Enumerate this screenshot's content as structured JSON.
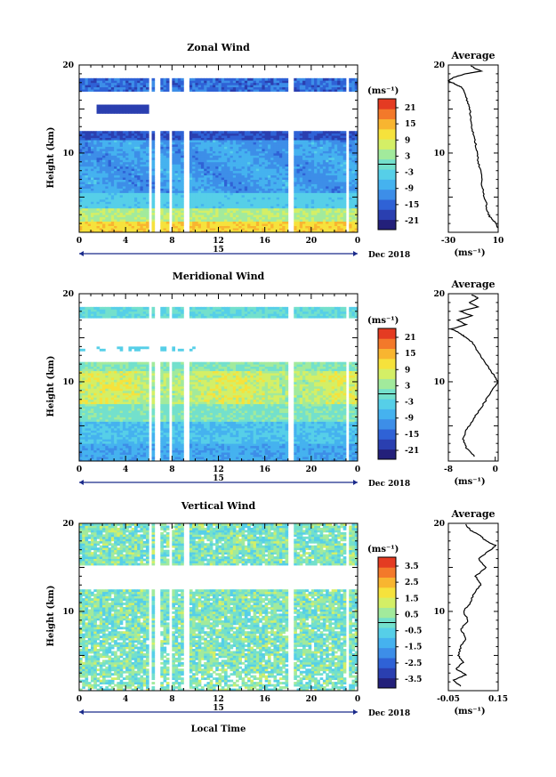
{
  "figure": {
    "xlabel": "Local Time",
    "date_label": "Dec 2018",
    "day_label": "15",
    "x_ticks": [
      "0",
      "4",
      "8",
      "12",
      "16",
      "20",
      "0"
    ],
    "ylabel": "Height (km)",
    "y_ticks": [
      "10",
      "20"
    ],
    "unit_label": "(ms⁻¹)",
    "avg_title": "Average"
  },
  "chart_data": [
    {
      "type": "heatmap",
      "title": "Zonal Wind",
      "xlabel": "Local Time",
      "ylabel": "Height (km)",
      "xlim": [
        0,
        24
      ],
      "ylim": [
        1,
        20
      ],
      "colorbar_ticks": [
        "21",
        "15",
        "9",
        "3",
        "-3",
        "-9",
        "-15",
        "-21"
      ],
      "colorbar_range": [
        -24,
        24
      ],
      "average": {
        "title": "Average",
        "xlabel": "(ms⁻¹)",
        "x_ticks": [
          "-30",
          "10"
        ],
        "xlim": [
          -30,
          10
        ],
        "profile": [
          [
            10,
            1.5
          ],
          [
            7,
            2.2
          ],
          [
            3,
            2.8
          ],
          [
            1,
            3.5
          ],
          [
            0,
            4.5
          ],
          [
            -2,
            5.5
          ],
          [
            -3,
            6.5
          ],
          [
            -4,
            8
          ],
          [
            -6,
            9
          ],
          [
            -7,
            10
          ],
          [
            -8,
            11
          ],
          [
            -10,
            12
          ],
          [
            -11,
            13
          ],
          [
            -12,
            14
          ],
          [
            -13,
            15
          ],
          [
            -15,
            16
          ],
          [
            -17,
            17
          ],
          [
            -20,
            17.5
          ],
          [
            -24,
            17.8
          ],
          [
            -30,
            18.2
          ],
          [
            -26,
            18.6
          ],
          [
            -16,
            19
          ],
          [
            -4,
            19.3
          ],
          [
            -8,
            19.6
          ],
          [
            -12,
            19.9
          ]
        ]
      }
    },
    {
      "type": "heatmap",
      "title": "Meridional Wind",
      "xlabel": "Local Time",
      "ylabel": "Height (km)",
      "xlim": [
        0,
        24
      ],
      "ylim": [
        1,
        20
      ],
      "colorbar_ticks": [
        "21",
        "15",
        "9",
        "3",
        "-3",
        "-9",
        "-15",
        "-21"
      ],
      "colorbar_range": [
        -24,
        24
      ],
      "average": {
        "title": "Average",
        "xlabel": "(ms⁻¹)",
        "x_ticks": [
          "-8",
          "0"
        ],
        "xlim": [
          -8,
          0.5
        ],
        "profile": [
          [
            -3.5,
            1.5
          ],
          [
            -5,
            2.5
          ],
          [
            -5.5,
            3.5
          ],
          [
            -5,
            4.5
          ],
          [
            -4,
            5.5
          ],
          [
            -3,
            6.5
          ],
          [
            -2,
            7.5
          ],
          [
            -1,
            8.5
          ],
          [
            0,
            9.5
          ],
          [
            0.5,
            10
          ],
          [
            0,
            10.5
          ],
          [
            -1,
            11.5
          ],
          [
            -2,
            12.5
          ],
          [
            -3,
            13.5
          ],
          [
            -4,
            14.5
          ],
          [
            -5,
            15
          ],
          [
            -6,
            15.5
          ],
          [
            -7.5,
            16
          ],
          [
            -5,
            16.5
          ],
          [
            -6.5,
            17
          ],
          [
            -4,
            17.5
          ],
          [
            -6,
            18
          ],
          [
            -3,
            18.5
          ],
          [
            -4.5,
            19
          ],
          [
            -3,
            19.5
          ],
          [
            -4,
            19.9
          ]
        ]
      }
    },
    {
      "type": "heatmap",
      "title": "Vertical Wind",
      "xlabel": "Local Time",
      "ylabel": "Height (km)",
      "xlim": [
        0,
        24
      ],
      "ylim": [
        1,
        20
      ],
      "colorbar_ticks": [
        "3.5",
        "2.5",
        "1.5",
        "0.5",
        "-0.5",
        "-1.5",
        "-2.5",
        "-3.5"
      ],
      "colorbar_range": [
        -4,
        4
      ],
      "average": {
        "title": "Average",
        "xlabel": "(ms⁻¹)",
        "x_ticks": [
          "-0.05",
          "0.15"
        ],
        "xlim": [
          -0.05,
          0.15
        ],
        "profile": [
          [
            0.0,
            1.5
          ],
          [
            -0.03,
            2.2
          ],
          [
            0.02,
            2.8
          ],
          [
            -0.02,
            3.5
          ],
          [
            0.01,
            4.2
          ],
          [
            -0.01,
            5
          ],
          [
            0.0,
            6
          ],
          [
            0.02,
            7
          ],
          [
            0.0,
            8
          ],
          [
            0.03,
            9
          ],
          [
            0.01,
            10
          ],
          [
            0.04,
            11
          ],
          [
            0.05,
            12
          ],
          [
            0.08,
            13
          ],
          [
            0.06,
            14
          ],
          [
            0.1,
            15
          ],
          [
            0.07,
            16
          ],
          [
            0.12,
            17
          ],
          [
            0.14,
            17.5
          ],
          [
            0.1,
            18
          ],
          [
            0.08,
            18.6
          ],
          [
            0.04,
            19.2
          ],
          [
            0.02,
            19.9
          ]
        ]
      }
    }
  ]
}
